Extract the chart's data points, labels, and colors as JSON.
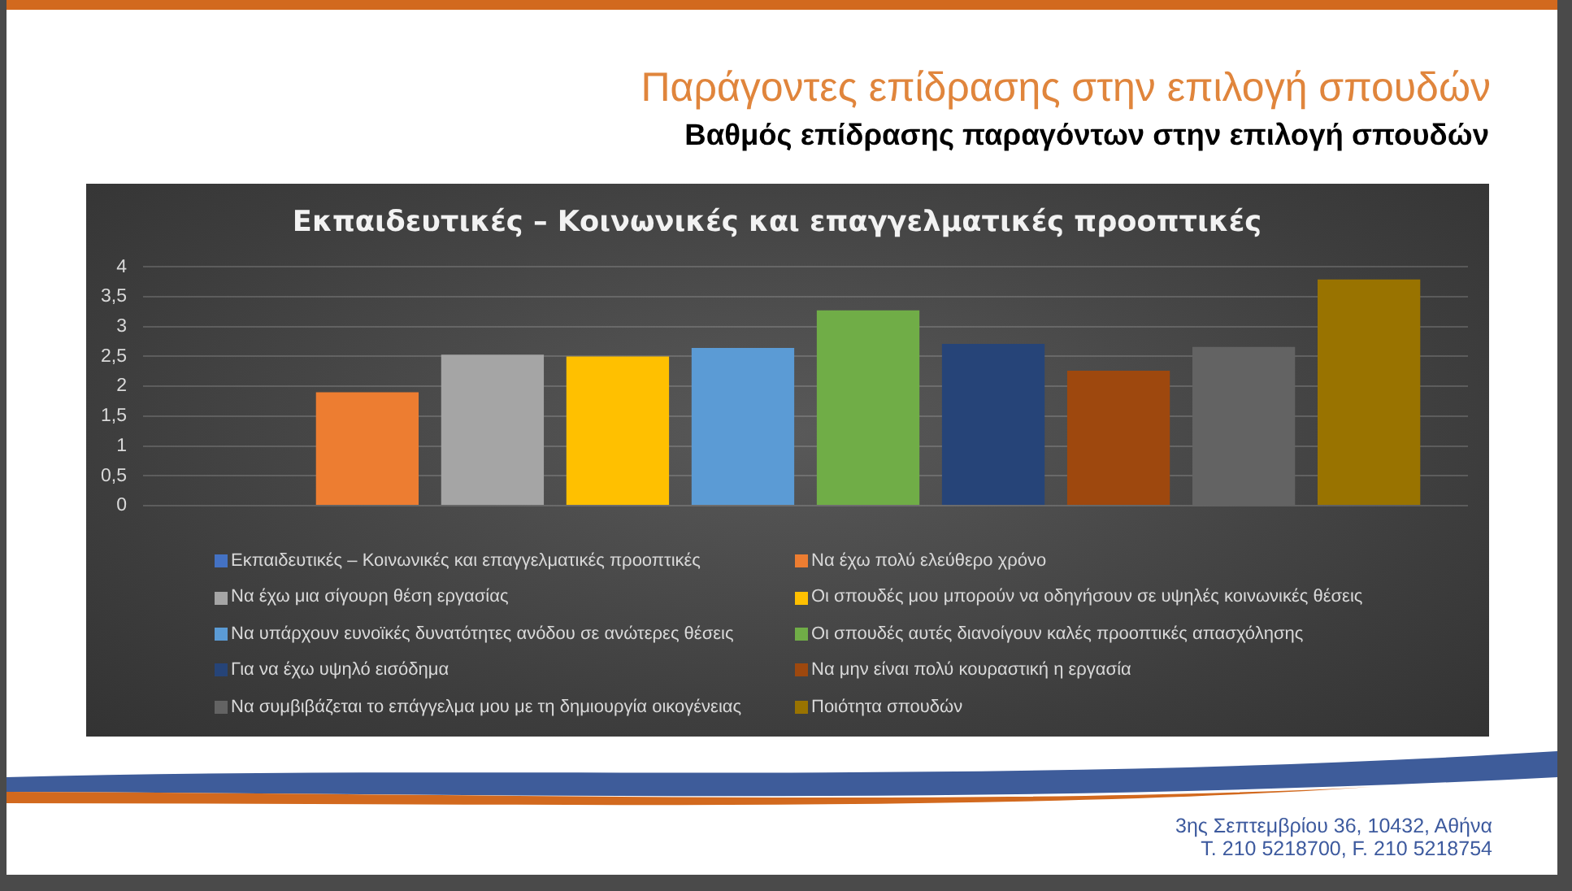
{
  "chart_data": {
    "type": "bar",
    "title": "Εκπαιδευτικές – Κοινωνικές και επαγγελματικές προοπτικές",
    "categories": [
      null
    ],
    "series": [
      {
        "name": "Εκπαιδευτικές – Κοινωνικές και επαγγελματικές προοπτικές",
        "color": "#4472c4",
        "values": [
          null
        ]
      },
      {
        "name": "Να έχω πολύ ελεύθερο χρόνο",
        "color": "#ed7d31",
        "values": [
          1.9
        ]
      },
      {
        "name": "Να έχω μια σίγουρη θέση εργασίας",
        "color": "#a5a5a5",
        "values": [
          2.53
        ]
      },
      {
        "name": "Οι σπουδές μου μπορούν να οδηγήσουν σε υψηλές κοινωνικές θέσεις",
        "color": "#ffc000",
        "values": [
          2.5
        ]
      },
      {
        "name": "Να υπάρχουν ευνοϊκές δυνατότητες ανόδου σε ανώτερες θέσεις",
        "color": "#5b9bd5",
        "values": [
          2.64
        ]
      },
      {
        "name": "Οι σπουδές αυτές διανοίγουν καλές προοπτικές απασχόλησης",
        "color": "#70ad47",
        "values": [
          3.27
        ]
      },
      {
        "name": "Για να έχω υψηλό εισόδημα",
        "color": "#264478",
        "values": [
          2.71
        ]
      },
      {
        "name": "Να μην είναι πολύ κουραστική η εργασία",
        "color": "#9e480e",
        "values": [
          2.26
        ]
      },
      {
        "name": "Να συμβιβάζεται το επάγγελμα μου με τη δημιουργία οικογένειας",
        "color": "#636363",
        "values": [
          2.66
        ]
      },
      {
        "name": "Ποιότητα σπουδών",
        "color": "#997300",
        "values": [
          3.79
        ]
      }
    ],
    "ylim": [
      0,
      4
    ],
    "yticks": [
      0,
      {
        "value": 0.5,
        "label": "0,5"
      },
      1,
      {
        "value": 1.5,
        "label": "1,5"
      },
      2,
      {
        "value": 2.5,
        "label": "2,5"
      },
      3,
      {
        "value": 3.5,
        "label": "3,5"
      },
      4
    ],
    "grid": "y",
    "legend": "bottom",
    "tick_labels": "y",
    "annotations": [
      "Παράγοντες επίδρασης στην επιλογή σπουδών",
      "Βαθμός επίδρασης παραγόντων στην επιλογή σπουδών",
      "3ης Σεπτεμβρίου 36, 10432, Αθήνα",
      "T. 210 5218700, F. 210 5218754"
    ]
  }
}
